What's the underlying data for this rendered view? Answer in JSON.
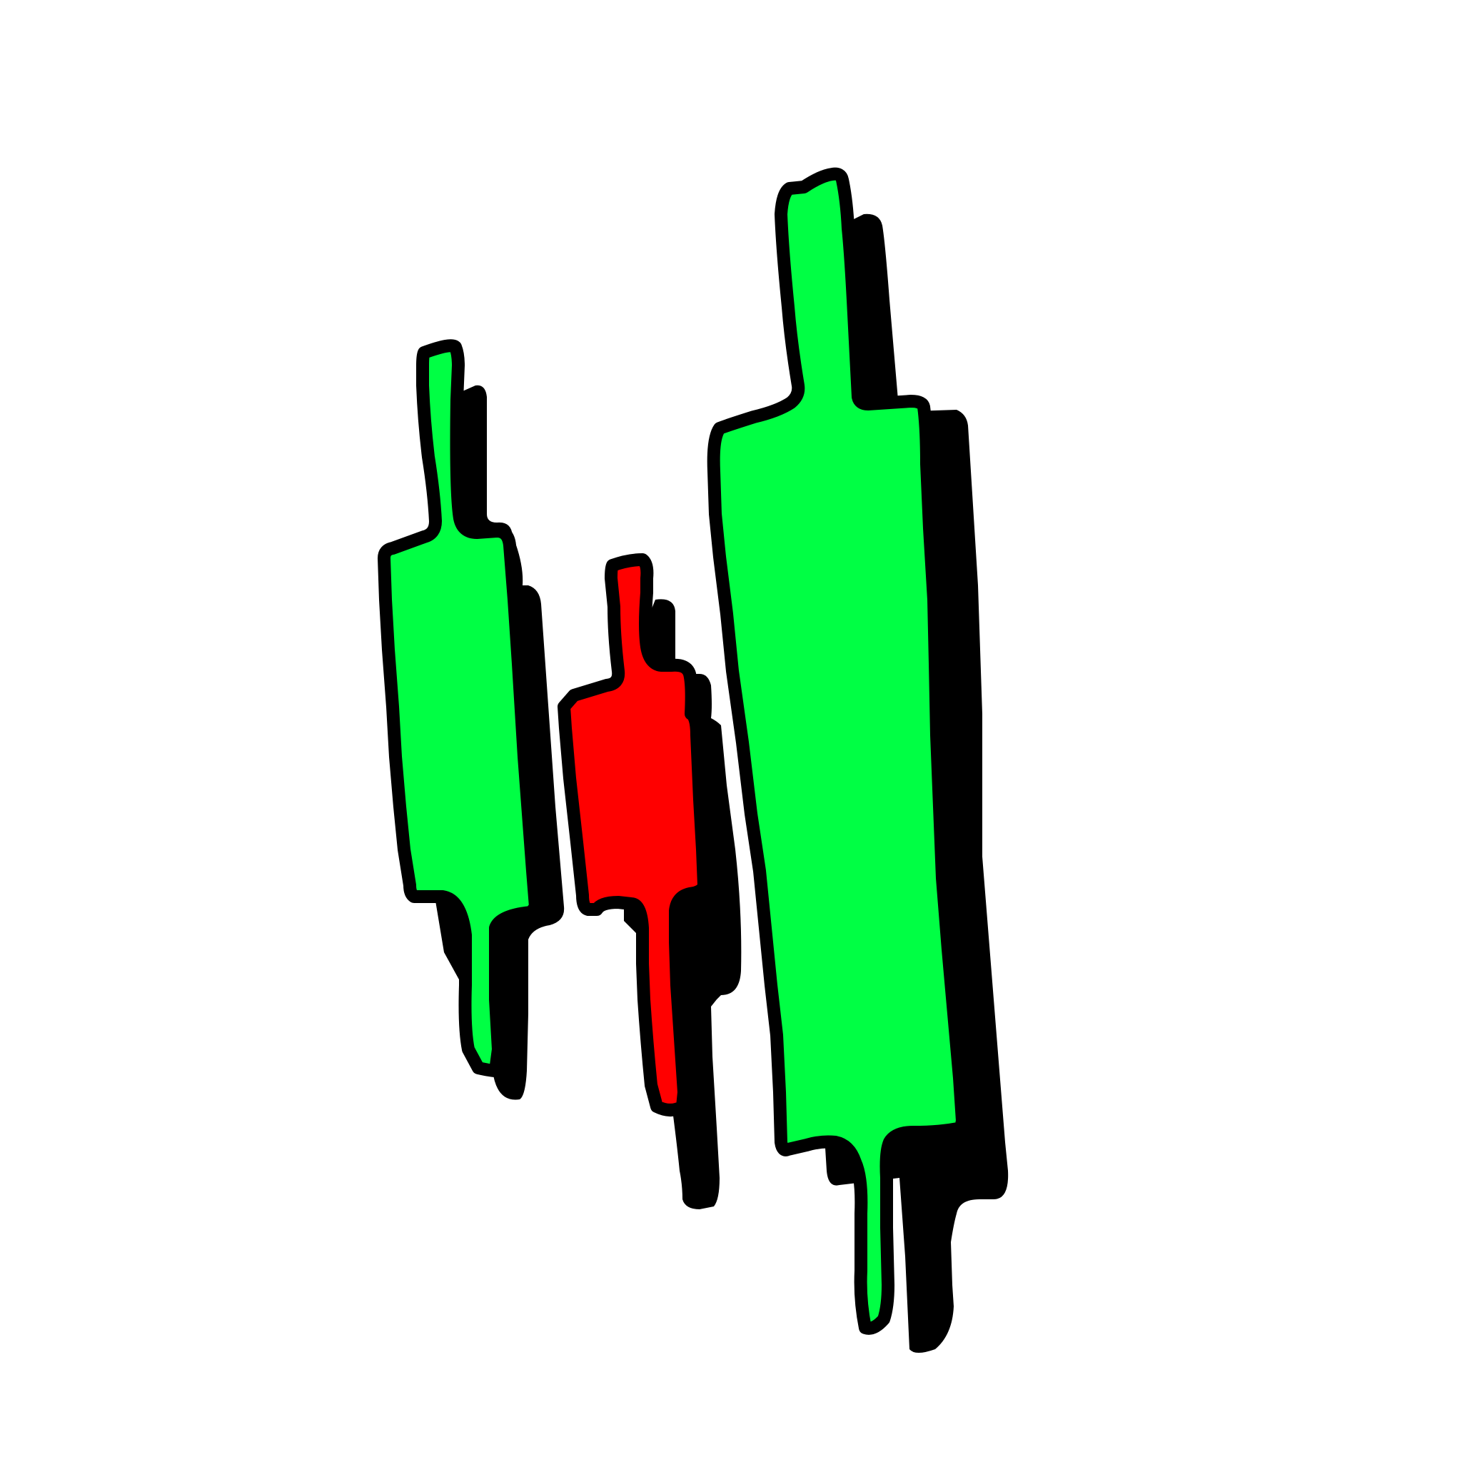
{
  "illustration": {
    "subject": "candlestick-trio-icon",
    "background_color": "#ffffff",
    "outline_color": "#000000",
    "shadow_color": "#000000",
    "candles": [
      {
        "direction": "up",
        "color": "#00ff44"
      },
      {
        "direction": "down",
        "color": "#ff0000"
      },
      {
        "direction": "up",
        "color": "#00ff44"
      }
    ]
  }
}
